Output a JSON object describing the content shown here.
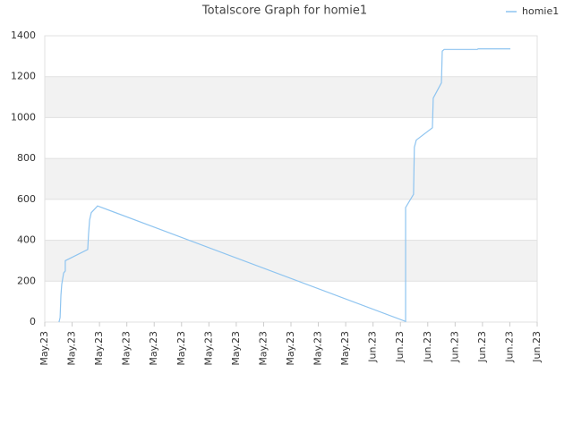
{
  "chart_data": {
    "type": "line",
    "title": "Totalscore Graph for homie1",
    "x": [
      0.52,
      0.56,
      0.59,
      0.62,
      0.69,
      0.75,
      0.75,
      1.57,
      1.6,
      1.64,
      1.7,
      1.93,
      13.19,
      13.19,
      13.48,
      13.51,
      13.58,
      14.17,
      14.2,
      14.5,
      14.53,
      14.6,
      15.81,
      15.84,
      17.02
    ],
    "series": [
      {
        "name": "homie1",
        "color": "#8ec4f0",
        "values": [
          0,
          22,
          130,
          184,
          240,
          250,
          300,
          355,
          430,
          500,
          535,
          568,
          3,
          560,
          625,
          855,
          890,
          950,
          1095,
          1170,
          1325,
          1333,
          1333,
          1336,
          1336
        ]
      }
    ],
    "xlim": [
      0,
      18
    ],
    "xticks": [
      {
        "value": 0,
        "label": "May.23"
      },
      {
        "value": 1,
        "label": "May.23"
      },
      {
        "value": 2,
        "label": "May.23"
      },
      {
        "value": 3,
        "label": "May.23"
      },
      {
        "value": 4,
        "label": "May.23"
      },
      {
        "value": 5,
        "label": "May.23"
      },
      {
        "value": 6,
        "label": "May.23"
      },
      {
        "value": 7,
        "label": "May.23"
      },
      {
        "value": 8,
        "label": "May.23"
      },
      {
        "value": 9,
        "label": "May.23"
      },
      {
        "value": 10,
        "label": "May.23"
      },
      {
        "value": 11,
        "label": "May.23"
      },
      {
        "value": 12,
        "label": "Jun.23"
      },
      {
        "value": 13,
        "label": "Jun.23"
      },
      {
        "value": 14,
        "label": "Jun.23"
      },
      {
        "value": 15,
        "label": "Jun.23"
      },
      {
        "value": 16,
        "label": "Jun.23"
      },
      {
        "value": 17,
        "label": "Jun.23"
      },
      {
        "value": 18,
        "label": "Jun.23"
      }
    ],
    "ylim": [
      0,
      1400
    ],
    "yticks": [
      0,
      200,
      400,
      600,
      800,
      1000,
      1200,
      1400
    ],
    "grid": true,
    "legend": "top-right"
  }
}
